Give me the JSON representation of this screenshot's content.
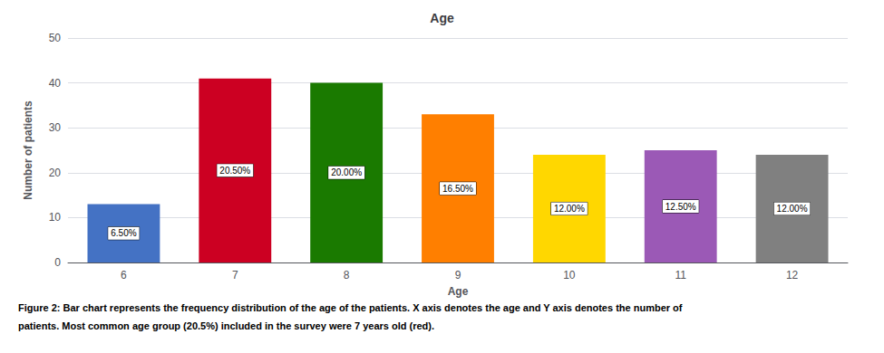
{
  "chart_data": {
    "type": "bar",
    "title": "Age",
    "categories": [
      6,
      7,
      8,
      9,
      10,
      11,
      12
    ],
    "values": [
      13,
      41,
      40,
      33,
      24,
      25,
      24
    ],
    "colors": [
      "#4472C4",
      "#CC0022",
      "#1A7A00",
      "#FF7F00",
      "#FFD700",
      "#9B59B6",
      "#808080"
    ],
    "annotations": [
      "6.50%",
      "20.50%",
      "20.00%",
      "16.50%",
      "12.00%",
      "12.50%",
      "12.00%"
    ],
    "xlabel": "Age",
    "ylabel": "Number of patients",
    "ylim": [
      0,
      50
    ],
    "yticks": [
      0,
      10,
      20,
      30,
      40,
      50
    ],
    "grid": true,
    "caption": [
      "Figure 2: Bar chart represents the frequency distribution of the age of the patients. X axis denotes the age and Y axis denotes the number of",
      "patients. Most common age group (20.5%) included in the survey were 7 years old (red)."
    ]
  }
}
